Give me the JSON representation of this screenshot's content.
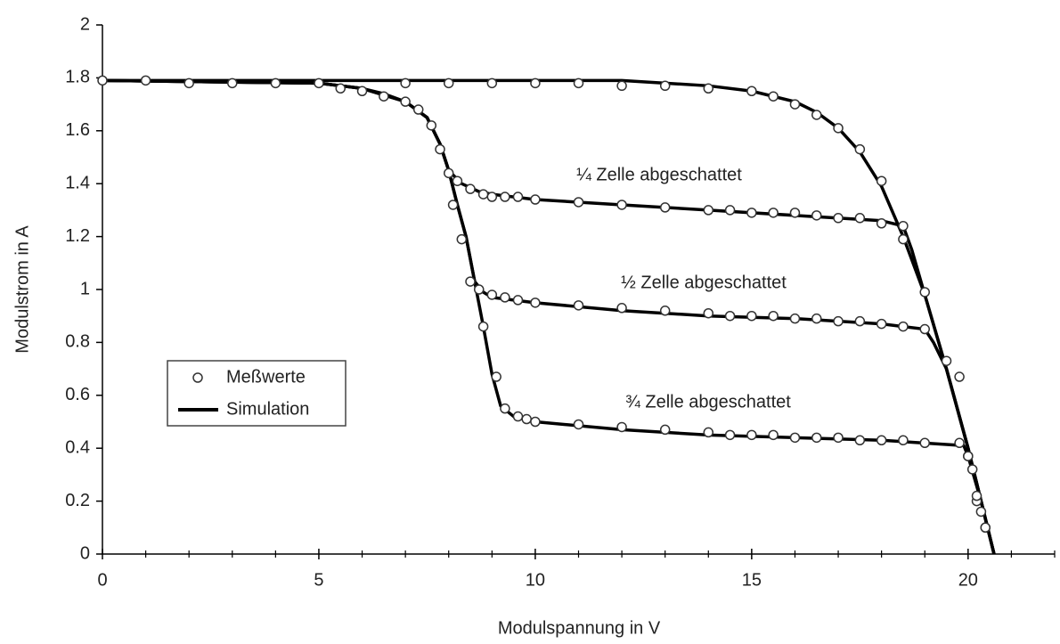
{
  "chart_data": {
    "type": "line",
    "xlabel": "Modulspannung in V",
    "ylabel": "Modulstrom in A",
    "xlim": [
      0,
      22
    ],
    "ylim": [
      0,
      2
    ],
    "xticks": [
      0,
      5,
      10,
      15,
      20
    ],
    "xminorticks": [
      1,
      2,
      3,
      4,
      6,
      7,
      8,
      9,
      11,
      12,
      13,
      14,
      16,
      17,
      18,
      19,
      21,
      22
    ],
    "yticks": [
      0,
      0.2,
      0.4,
      0.6,
      0.8,
      1,
      1.2,
      1.4,
      1.6,
      1.8,
      2
    ],
    "legend_position": "lower left",
    "annotations": [
      "¼ Zelle abgeschattet",
      "½ Zelle abgeschattet",
      "¾ Zelle abgeschattet"
    ],
    "series": [
      {
        "name": "Meßwerte",
        "style": "markers",
        "color": "#ffffff",
        "curves": [
          {
            "x": [
              0,
              1,
              2,
              3,
              4,
              5,
              7,
              8,
              9,
              10,
              11,
              12,
              13,
              14,
              15,
              15.5,
              16,
              16.5,
              17,
              17.5,
              18,
              18.5,
              19,
              19.5,
              19.8,
              20,
              20.2,
              20.4
            ],
            "values": [
              1.79,
              1.79,
              1.78,
              1.78,
              1.78,
              1.78,
              1.78,
              1.78,
              1.78,
              1.78,
              1.78,
              1.77,
              1.77,
              1.76,
              1.75,
              1.73,
              1.7,
              1.66,
              1.61,
              1.53,
              1.41,
              1.19,
              0.99,
              0.73,
              0.67,
              0.37,
              0.2,
              0.1
            ]
          },
          {
            "x": [
              5.5,
              6,
              6.5,
              7,
              7.3,
              7.6,
              7.8,
              8,
              8.2,
              8.5,
              8.8,
              9,
              9.3,
              9.6,
              10,
              11,
              12,
              13,
              14,
              14.5,
              15,
              15.5,
              16,
              16.5,
              17,
              17.5,
              18,
              18.5
            ],
            "values": [
              1.76,
              1.75,
              1.73,
              1.71,
              1.68,
              1.62,
              1.53,
              1.44,
              1.41,
              1.38,
              1.36,
              1.35,
              1.35,
              1.35,
              1.34,
              1.33,
              1.32,
              1.31,
              1.3,
              1.3,
              1.29,
              1.29,
              1.29,
              1.28,
              1.27,
              1.27,
              1.25,
              1.24
            ]
          },
          {
            "x": [
              8.1,
              8.3,
              8.5,
              8.7,
              9,
              9.3,
              9.6,
              10,
              11,
              12,
              13,
              14,
              14.5,
              15,
              15.5,
              16,
              16.5,
              17,
              17.5,
              18,
              18.5,
              19
            ],
            "values": [
              1.32,
              1.19,
              1.03,
              1,
              0.98,
              0.97,
              0.96,
              0.95,
              0.94,
              0.93,
              0.92,
              0.91,
              0.9,
              0.9,
              0.9,
              0.89,
              0.89,
              0.88,
              0.88,
              0.87,
              0.86,
              0.85
            ]
          },
          {
            "x": [
              8.8,
              9.1,
              9.3,
              9.6,
              9.8,
              10,
              11,
              12,
              13,
              14,
              14.5,
              15,
              15.5,
              16,
              16.5,
              17,
              17.5,
              18,
              18.5,
              19,
              19.8,
              20,
              20.1,
              20.2,
              20.3,
              20.4
            ],
            "values": [
              0.86,
              0.67,
              0.55,
              0.52,
              0.51,
              0.5,
              0.49,
              0.48,
              0.47,
              0.46,
              0.45,
              0.45,
              0.45,
              0.44,
              0.44,
              0.44,
              0.43,
              0.43,
              0.43,
              0.42,
              0.42,
              0.37,
              0.32,
              0.22,
              0.16,
              0.1
            ]
          }
        ]
      },
      {
        "name": "Simulation",
        "style": "line",
        "color": "#000000",
        "curves": [
          {
            "x": [
              0,
              5,
              10,
              12,
              14,
              15,
              16,
              16.5,
              17,
              17.5,
              18,
              18.5,
              19,
              19.5,
              20,
              20.3,
              20.6
            ],
            "values": [
              1.79,
              1.79,
              1.79,
              1.79,
              1.77,
              1.75,
              1.71,
              1.67,
              1.61,
              1.52,
              1.39,
              1.2,
              0.98,
              0.7,
              0.4,
              0.2,
              0
            ]
          },
          {
            "x": [
              0,
              5,
              6,
              6.5,
              7,
              7.5,
              7.8,
              8,
              8.3,
              8.7,
              9,
              10,
              12,
              14,
              16,
              18,
              18.5,
              18.7,
              19,
              19.5,
              20,
              20.3,
              20.6
            ],
            "values": [
              1.79,
              1.78,
              1.76,
              1.74,
              1.71,
              1.65,
              1.55,
              1.45,
              1.4,
              1.37,
              1.36,
              1.34,
              1.32,
              1.3,
              1.28,
              1.26,
              1.24,
              1.15,
              0.98,
              0.7,
              0.4,
              0.2,
              0
            ]
          },
          {
            "x": [
              0,
              5,
              6,
              7,
              7.5,
              7.8,
              8,
              8.2,
              8.4,
              8.6,
              8.8,
              9,
              10,
              12,
              14,
              16,
              18,
              19,
              19.2,
              19.5,
              20,
              20.3,
              20.6
            ],
            "values": [
              1.79,
              1.78,
              1.76,
              1.71,
              1.65,
              1.55,
              1.45,
              1.32,
              1.2,
              1.03,
              0.99,
              0.97,
              0.95,
              0.92,
              0.9,
              0.89,
              0.87,
              0.85,
              0.8,
              0.7,
              0.4,
              0.2,
              0
            ]
          },
          {
            "x": [
              0,
              5,
              6,
              7,
              7.5,
              7.8,
              8,
              8.2,
              8.4,
              8.6,
              8.8,
              9,
              9.2,
              9.5,
              10,
              12,
              14,
              16,
              18,
              19.9,
              20,
              20.3,
              20.6
            ],
            "values": [
              1.79,
              1.78,
              1.76,
              1.71,
              1.65,
              1.55,
              1.45,
              1.32,
              1.2,
              1.03,
              0.86,
              0.68,
              0.56,
              0.52,
              0.5,
              0.47,
              0.45,
              0.44,
              0.43,
              0.41,
              0.37,
              0.2,
              0
            ]
          }
        ]
      }
    ]
  }
}
